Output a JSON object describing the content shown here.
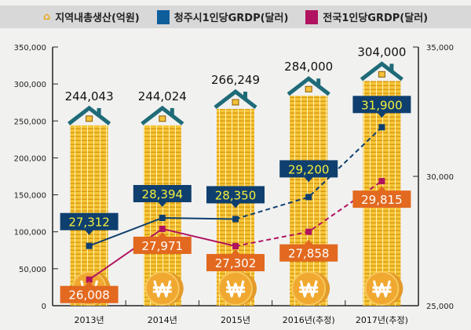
{
  "chart_data": {
    "type": "bar+line",
    "categories": [
      "2013년",
      "2014년",
      "2015년",
      "2016년(추정)",
      "2017년(추정)"
    ],
    "legend": {
      "placement": "top",
      "items": [
        "지역내총생산(억원)",
        "청주시1인당GRDP(달러)",
        "전국1인당GRDP(달러)"
      ]
    },
    "series": [
      {
        "name": "지역내총생산(억원)",
        "type": "bar",
        "axis": "left",
        "values": [
          244043,
          244024,
          266249,
          284000,
          304000
        ],
        "labels": [
          "244,043",
          "244,024",
          "266,249",
          "284,000",
          "304,000"
        ],
        "icon": "house-icon",
        "color": "#f2c230"
      },
      {
        "name": "청주시1인당GRDP(달러)",
        "type": "line",
        "axis": "right",
        "values": [
          27312,
          28394,
          28350,
          29200,
          31900
        ],
        "labels": [
          "27,312",
          "28,394",
          "28,350",
          "29,200",
          "31,900"
        ],
        "color": "#0f3f6f",
        "label_text_color": "#f5f03a",
        "dashed_from_index": 2
      },
      {
        "name": "전국1인당GRDP(달러)",
        "type": "line",
        "axis": "right",
        "values": [
          26008,
          27971,
          27302,
          27858,
          29815
        ],
        "labels": [
          "26,008",
          "27,971",
          "27,302",
          "27,858",
          "29,815"
        ],
        "color": "#b0135f",
        "label_box_color": "#e2691f",
        "dashed_from_index": 2
      }
    ],
    "left_axis": {
      "ylim": [
        0,
        350000
      ],
      "ticks": [
        "0",
        "50,000",
        "100,000",
        "150,000",
        "200,000",
        "250,000",
        "300,000",
        "350,000"
      ]
    },
    "right_axis": {
      "ylim": [
        25000,
        35000
      ],
      "ticks": [
        "25,000",
        "30,000",
        "35,000"
      ]
    },
    "grid": false
  }
}
